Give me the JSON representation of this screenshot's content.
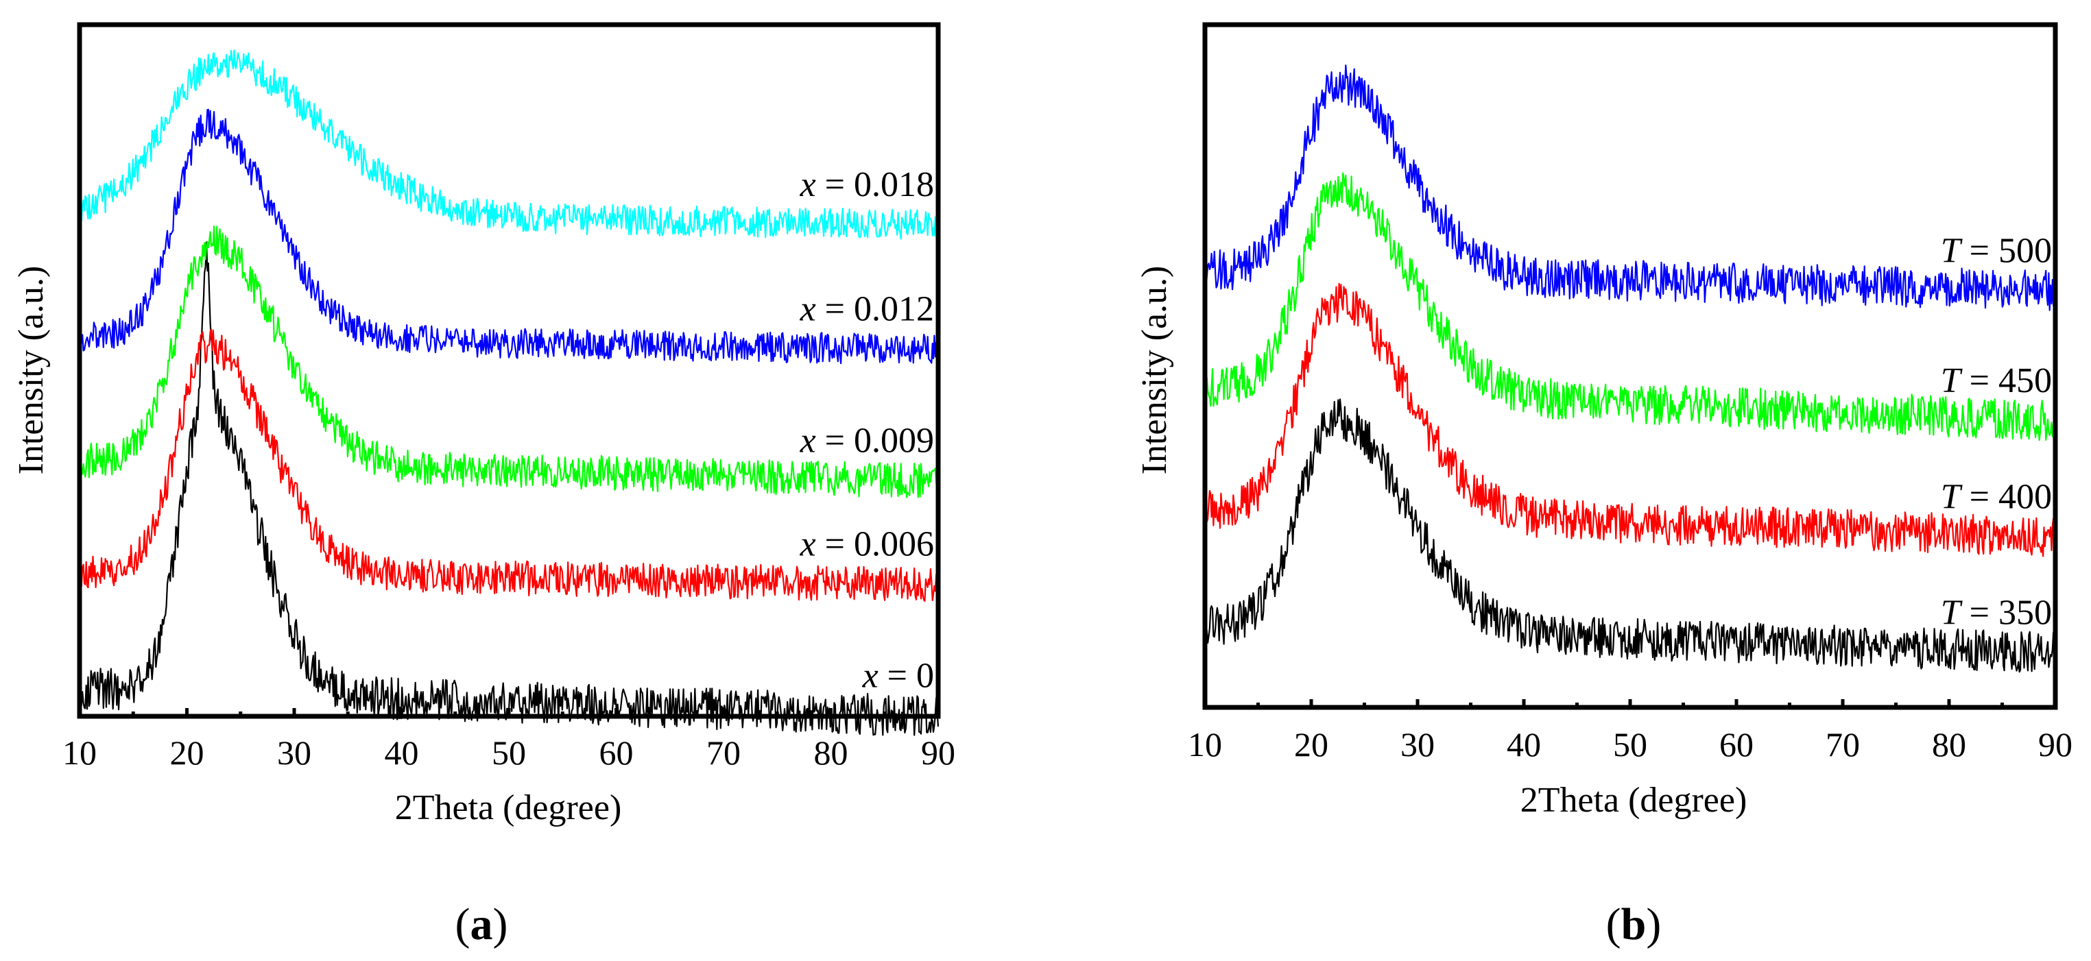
{
  "chart_data": [
    {
      "type": "line",
      "panel_label": "a",
      "xlabel": "2Theta (degree)",
      "ylabel": "Intensity (a.u.)",
      "xlim": [
        10,
        90
      ],
      "xticks": [
        10,
        20,
        30,
        40,
        50,
        60,
        70,
        80,
        90
      ],
      "yticks_shown": false,
      "series": [
        {
          "name": "x = 0",
          "symbol": "x",
          "value": "= 0",
          "color": "#000000",
          "baseline": 0.04,
          "tail": 0.0,
          "peak": 0.42,
          "center": 21.8,
          "width": 3.2,
          "sharp": 0.22,
          "noise": 0.03
        },
        {
          "name": "x = 0.006",
          "symbol": "x",
          "value": "= 0.006",
          "color": "#ff0000",
          "baseline": 0.21,
          "tail": 0.19,
          "peak": 0.33,
          "center": 22.0,
          "width": 3.8,
          "sharp": 0.0,
          "noise": 0.025
        },
        {
          "name": "x = 0.009",
          "symbol": "x",
          "value": "= 0.009",
          "color": "#00ff00",
          "baseline": 0.37,
          "tail": 0.34,
          "peak": 0.32,
          "center": 22.3,
          "width": 4.2,
          "sharp": 0.0,
          "noise": 0.025
        },
        {
          "name": "x = 0.012",
          "symbol": "x",
          "value": "= 0.012",
          "color": "#0000ff",
          "baseline": 0.55,
          "tail": 0.53,
          "peak": 0.31,
          "center": 22.0,
          "width": 4.0,
          "sharp": 0.0,
          "noise": 0.022
        },
        {
          "name": "x = 0.018",
          "symbol": "x",
          "value": "= 0.018",
          "color": "#00ffff",
          "baseline": 0.73,
          "tail": 0.71,
          "peak": 0.22,
          "center": 23.0,
          "width": 6.5,
          "sharp": 0.0,
          "noise": 0.022
        }
      ]
    },
    {
      "type": "line",
      "panel_label": "b",
      "xlabel": "2Theta (degree)",
      "ylabel": "Intensity (a.u.)",
      "xlim": [
        10,
        90
      ],
      "xticks": [
        10,
        20,
        30,
        40,
        50,
        60,
        70,
        80,
        90
      ],
      "yticks_shown": false,
      "series": [
        {
          "name": "T = 350",
          "symbol": "T",
          "value": "= 350",
          "color": "#000000",
          "baseline": 0.12,
          "tail": 0.08,
          "peak": 0.31,
          "center": 22.3,
          "width": 4.5,
          "sharp": 0.0,
          "noise": 0.03
        },
        {
          "name": "T = 400",
          "symbol": "T",
          "value": "= 400",
          "color": "#ff0000",
          "baseline": 0.29,
          "tail": 0.25,
          "peak": 0.31,
          "center": 22.3,
          "width": 4.5,
          "sharp": 0.0,
          "noise": 0.03
        },
        {
          "name": "T = 450",
          "symbol": "T",
          "value": "= 450",
          "color": "#00ff00",
          "baseline": 0.47,
          "tail": 0.42,
          "peak": 0.3,
          "center": 22.5,
          "width": 4.5,
          "sharp": 0.0,
          "noise": 0.03
        },
        {
          "name": "T = 500",
          "symbol": "T",
          "value": "= 500",
          "color": "#0000ff",
          "baseline": 0.64,
          "tail": 0.61,
          "peak": 0.28,
          "center": 22.5,
          "width": 4.3,
          "sharp": 0.0,
          "noise": 0.03
        }
      ]
    }
  ]
}
